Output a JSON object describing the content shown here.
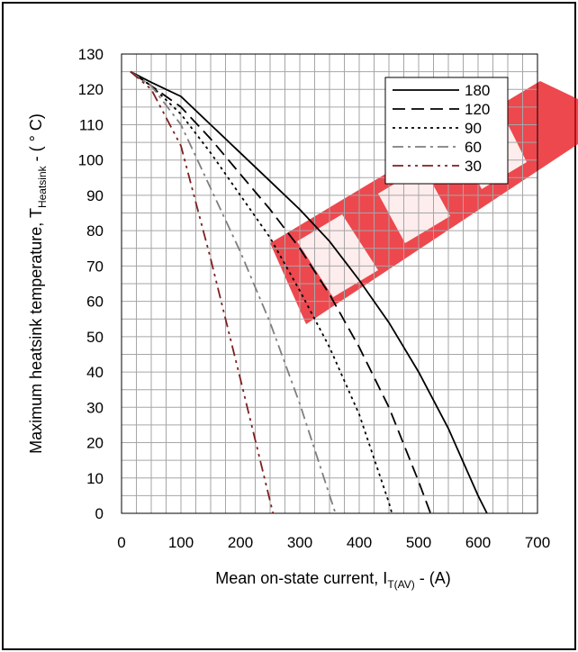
{
  "chart_data": {
    "type": "line",
    "xlabel": "Mean on-state current, I",
    "xlabel_sub": "T(AV)",
    "xlabel_unit": " - (A)",
    "ylabel": "Maximum heatsink temperature, T",
    "ylabel_sub": "Heatsink",
    "ylabel_unit": " - ( ° C)",
    "xlim": [
      0,
      700
    ],
    "ylim": [
      0,
      130
    ],
    "x_major_ticks": [
      0,
      100,
      200,
      300,
      400,
      500,
      600,
      700
    ],
    "y_major_ticks": [
      0,
      10,
      20,
      30,
      40,
      50,
      60,
      70,
      80,
      90,
      100,
      110,
      120,
      130
    ],
    "x_tick_labels": [
      "0",
      "100",
      "200",
      "300",
      "400",
      "500",
      "600",
      "700"
    ],
    "y_tick_labels": [
      "0",
      "10",
      "20",
      "30",
      "40",
      "50",
      "60",
      "70",
      "80",
      "90",
      "100",
      "110",
      "120",
      "130"
    ],
    "grid": true,
    "legend_position": "top-right",
    "watermark": "EPW",
    "series": [
      {
        "name": "180",
        "color": "#000000",
        "dash": "",
        "width": 1.8,
        "x": [
          15,
          50,
          100,
          150,
          200,
          250,
          300,
          350,
          400,
          450,
          500,
          550,
          600,
          615
        ],
        "y": [
          125,
          122,
          118,
          110,
          102,
          94,
          86,
          77,
          66,
          54,
          40,
          24,
          5,
          0
        ]
      },
      {
        "name": "120",
        "color": "#000000",
        "dash": "14,7",
        "width": 1.8,
        "x": [
          15,
          50,
          100,
          150,
          200,
          250,
          300,
          350,
          400,
          450,
          500,
          520
        ],
        "y": [
          125,
          121,
          115,
          106,
          96,
          86,
          75,
          62,
          47,
          30,
          9,
          0
        ]
      },
      {
        "name": "90",
        "color": "#000000",
        "dash": "3,4",
        "width": 1.8,
        "x": [
          15,
          50,
          100,
          150,
          200,
          250,
          300,
          350,
          400,
          450,
          455
        ],
        "y": [
          125,
          121,
          113,
          102,
          90,
          78,
          63,
          47,
          28,
          3,
          0
        ]
      },
      {
        "name": "60",
        "color": "#7f7f7f",
        "dash": "12,5,3,5",
        "width": 1.8,
        "x": [
          15,
          50,
          100,
          150,
          200,
          250,
          300,
          360
        ],
        "y": [
          125,
          121,
          110,
          92,
          74,
          54,
          31,
          0
        ]
      },
      {
        "name": "30",
        "color": "#7f1f1f",
        "dash": "12,5,3,5,3,5",
        "width": 1.8,
        "x": [
          15,
          50,
          100,
          150,
          200,
          255
        ],
        "y": [
          125,
          120,
          104,
          72,
          38,
          0
        ]
      }
    ],
    "series_legend_colors": [
      "#000000",
      "#000000",
      "#000000",
      "#000000",
      "#000000"
    ]
  }
}
